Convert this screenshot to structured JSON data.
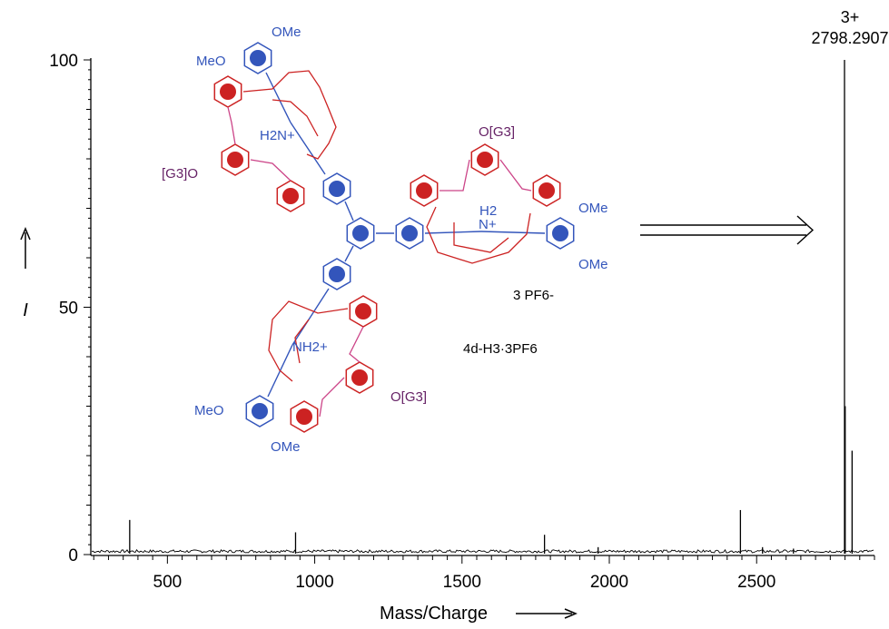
{
  "chart_data": {
    "type": "line",
    "xlabel": "Mass/Charge",
    "ylabel": "I",
    "xlim": [
      240,
      2900
    ],
    "ylim": [
      0,
      100
    ],
    "x_ticks": [
      500,
      1000,
      1500,
      2000,
      2500
    ],
    "x_tick_labels": [
      "500",
      "1000",
      "1500",
      "2000",
      "2500"
    ],
    "y_ticks": [
      0,
      50,
      100
    ],
    "y_tick_labels": [
      "0",
      "50",
      "100"
    ],
    "grid": false,
    "peaks": [
      {
        "x": 372,
        "y": 7
      },
      {
        "x": 935,
        "y": 4.5
      },
      {
        "x": 1780,
        "y": 4
      },
      {
        "x": 1962,
        "y": 1.5
      },
      {
        "x": 2445,
        "y": 9
      },
      {
        "x": 2520,
        "y": 1.5
      },
      {
        "x": 2625,
        "y": 1.2
      },
      {
        "x": 2798.2907,
        "y": 100
      },
      {
        "x": 2800.6,
        "y": 30
      },
      {
        "x": 2824,
        "y": 21
      }
    ],
    "annotations": [
      {
        "charge": "3+",
        "mz": "2798.2907",
        "x": 2798.2907
      }
    ],
    "structure_labels": {
      "compound": "4d-H3·3PF6",
      "counterion": "3 PF6-",
      "substituents": [
        "OMe",
        "MeO",
        "OMe",
        "MeO",
        "OMe",
        "OMe"
      ],
      "groups": [
        "[G3]O",
        "O[G3]",
        "O[G3]"
      ],
      "ammonium": [
        "H2N+",
        "H2",
        "N+",
        "NH2+"
      ]
    },
    "colors": {
      "blue": "#3355bb",
      "red": "#cc2222",
      "pink": "#cc4488",
      "purple": "#662266",
      "line": "#000000"
    }
  }
}
